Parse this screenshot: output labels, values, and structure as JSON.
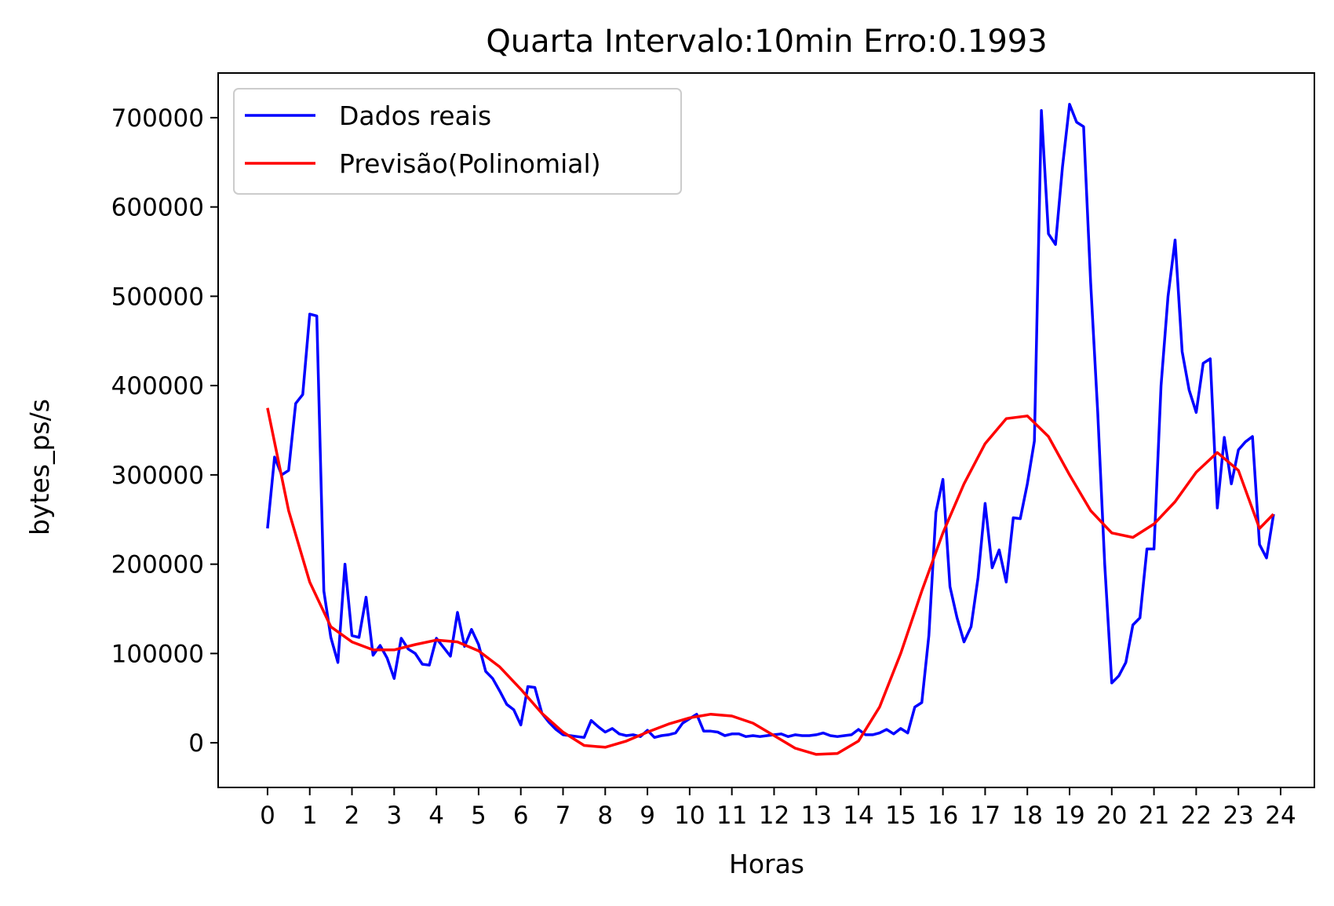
{
  "chart_data": {
    "type": "line",
    "title": "Quarta Intervalo:10min Erro:0.1993",
    "xlabel": "Horas",
    "ylabel": "bytes_ps/s",
    "xlim": [
      -1.17,
      24.8
    ],
    "ylim": [
      -50000,
      750000
    ],
    "xticks": [
      0,
      1,
      2,
      3,
      4,
      5,
      6,
      7,
      8,
      9,
      10,
      11,
      12,
      13,
      14,
      15,
      16,
      17,
      18,
      19,
      20,
      21,
      22,
      23,
      24
    ],
    "yticks": [
      0,
      100000,
      200000,
      300000,
      400000,
      500000,
      600000,
      700000
    ],
    "grid": false,
    "legend": "top-left",
    "series": [
      {
        "name": "Dados reais",
        "color": "#0000ff",
        "x": [
          0,
          0.1667,
          0.3333,
          0.5,
          0.6667,
          0.8333,
          1,
          1.1667,
          1.3333,
          1.5,
          1.6667,
          1.8333,
          2,
          2.1667,
          2.3333,
          2.5,
          2.6667,
          2.8333,
          3,
          3.1667,
          3.3333,
          3.5,
          3.6667,
          3.8333,
          4,
          4.1667,
          4.3333,
          4.5,
          4.6667,
          4.8333,
          5,
          5.1667,
          5.3333,
          5.5,
          5.6667,
          5.8333,
          6,
          6.1667,
          6.3333,
          6.5,
          6.6667,
          6.8333,
          7,
          7.1667,
          7.3333,
          7.5,
          7.6667,
          7.8333,
          8,
          8.1667,
          8.3333,
          8.5,
          8.6667,
          8.8333,
          9,
          9.1667,
          9.3333,
          9.5,
          9.6667,
          9.8333,
          10,
          10.1667,
          10.3333,
          10.5,
          10.6667,
          10.8333,
          11,
          11.1667,
          11.3333,
          11.5,
          11.6667,
          11.8333,
          12,
          12.1667,
          12.3333,
          12.5,
          12.6667,
          12.8333,
          13,
          13.1667,
          13.3333,
          13.5,
          13.6667,
          13.8333,
          14,
          14.1667,
          14.3333,
          14.5,
          14.6667,
          14.8333,
          15,
          15.1667,
          15.3333,
          15.5,
          15.6667,
          15.8333,
          16,
          16.1667,
          16.3333,
          16.5,
          16.6667,
          16.8333,
          17,
          17.1667,
          17.3333,
          17.5,
          17.6667,
          17.8333,
          18,
          18.1667,
          18.3333,
          18.5,
          18.6667,
          18.8333,
          19,
          19.1667,
          19.3333,
          19.5,
          19.6667,
          19.8333,
          20,
          20.1667,
          20.3333,
          20.5,
          20.6667,
          20.8333,
          21,
          21.1667,
          21.3333,
          21.5,
          21.6667,
          21.8333,
          22,
          22.1667,
          22.3333,
          22.5,
          22.6667,
          22.8333,
          23,
          23.1667,
          23.3333,
          23.5,
          23.6667,
          23.8333
        ],
        "values": [
          240000,
          320000,
          300000,
          305000,
          380000,
          390000,
          480000,
          478000,
          170000,
          118000,
          90000,
          200000,
          120000,
          118000,
          163000,
          98000,
          109000,
          95000,
          72000,
          117000,
          105000,
          100000,
          88000,
          87000,
          117000,
          107000,
          97000,
          146000,
          108000,
          127000,
          110000,
          80000,
          72000,
          58000,
          43000,
          37000,
          20000,
          63000,
          62000,
          33000,
          23000,
          15000,
          9000,
          8000,
          7000,
          6000,
          25000,
          18000,
          12000,
          16000,
          10000,
          8000,
          9000,
          7000,
          14000,
          6000,
          8000,
          9000,
          11000,
          22000,
          27000,
          32000,
          13000,
          13000,
          12000,
          8000,
          10000,
          10000,
          7000,
          8000,
          7000,
          8000,
          9000,
          10000,
          7000,
          9000,
          8000,
          8000,
          9000,
          11000,
          8000,
          7000,
          8000,
          9000,
          15000,
          9000,
          9000,
          11000,
          15000,
          10000,
          16000,
          11000,
          40000,
          45000,
          120000,
          258000,
          295000,
          175000,
          140000,
          113000,
          130000,
          185000,
          268000,
          196000,
          216000,
          180000,
          252000,
          251000,
          290000,
          338000,
          708000,
          570000,
          558000,
          645000,
          715000,
          695000,
          690000,
          515000,
          370000,
          200000,
          67000,
          75000,
          90000,
          132000,
          140000,
          217000,
          217000,
          400000,
          500000,
          563000,
          438000,
          395000,
          370000,
          425000,
          430000,
          263000,
          342000,
          290000,
          328000,
          337000,
          343000,
          222000,
          207000,
          256000
        ]
      },
      {
        "name": "Previsão(Polinomial)",
        "color": "#ff0000",
        "x": [
          0,
          0.5,
          1,
          1.5,
          2,
          2.5,
          3,
          3.5,
          4,
          4.5,
          5,
          5.5,
          6,
          6.5,
          7,
          7.5,
          8,
          8.5,
          9,
          9.5,
          10,
          10.5,
          11,
          11.5,
          12,
          12.5,
          13,
          13.5,
          14,
          14.5,
          15,
          15.5,
          16,
          16.5,
          17,
          17.5,
          18,
          18.5,
          19,
          19.5,
          20,
          20.5,
          21,
          21.5,
          22,
          22.5,
          23,
          23.5,
          23.83
        ],
        "values": [
          375000,
          260000,
          180000,
          130000,
          113000,
          104000,
          104000,
          110000,
          115000,
          113000,
          103000,
          85000,
          60000,
          33000,
          12000,
          -3000,
          -5000,
          2000,
          12000,
          21000,
          28000,
          32000,
          30000,
          22000,
          8000,
          -6000,
          -13000,
          -12000,
          2000,
          40000,
          100000,
          170000,
          235000,
          290000,
          335000,
          363000,
          366000,
          343000,
          300000,
          260000,
          235000,
          230000,
          245000,
          270000,
          303000,
          325000,
          305000,
          240000,
          256000
        ]
      }
    ]
  }
}
